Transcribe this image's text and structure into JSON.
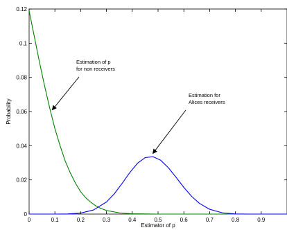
{
  "chart_data": {
    "type": "line",
    "xlabel": "Estimator of p",
    "ylabel": "Probability",
    "xlim": [
      0,
      1
    ],
    "ylim": [
      0,
      0.12
    ],
    "x_ticks": [
      "0",
      "0.1",
      "0.2",
      "0.3",
      "0.4",
      "0.5",
      "0.6",
      "0.7",
      "0.8",
      "0.9"
    ],
    "y_ticks": [
      "0",
      "0.02",
      "0.04",
      "0.06",
      "0.08",
      "0.1",
      "0.12"
    ],
    "grid": false,
    "series": [
      {
        "color": "#008000",
        "x": [
          0,
          0.02,
          0.04,
          0.06,
          0.08,
          0.1,
          0.12,
          0.14,
          0.16,
          0.18,
          0.2,
          0.22,
          0.24,
          0.26,
          0.28,
          0.3,
          0.35,
          0.4,
          0.45,
          0.5,
          0.6,
          0.7,
          0.8,
          0.9,
          1.0
        ],
        "y": [
          0.119,
          0.104,
          0.089,
          0.075,
          0.062,
          0.05,
          0.04,
          0.031,
          0.024,
          0.018,
          0.013,
          0.0095,
          0.0068,
          0.0047,
          0.0032,
          0.0021,
          0.0007,
          0.0002,
          0.0001,
          0,
          0,
          0,
          0,
          0,
          0
        ]
      },
      {
        "color": "#0000ff",
        "x": [
          0,
          0.05,
          0.1,
          0.15,
          0.2,
          0.25,
          0.3,
          0.33,
          0.36,
          0.39,
          0.42,
          0.45,
          0.48,
          0.51,
          0.54,
          0.57,
          0.6,
          0.63,
          0.66,
          0.7,
          0.75,
          0.8,
          0.85,
          0.9,
          0.95,
          1.0
        ],
        "y": [
          0,
          0,
          0,
          0.0001,
          0.0006,
          0.0024,
          0.0071,
          0.0118,
          0.0178,
          0.0242,
          0.0297,
          0.033,
          0.0336,
          0.0315,
          0.0271,
          0.0215,
          0.0156,
          0.0104,
          0.0063,
          0.0028,
          0.0007,
          0.0001,
          0,
          0,
          0,
          0
        ]
      }
    ],
    "annotations": [
      {
        "lines": [
          "Estimation of p",
          "for non receivers"
        ],
        "arrow_to": [
          0.09,
          0.061
        ]
      },
      {
        "lines": [
          "Estimation for",
          "Alices receivers"
        ],
        "arrow_to": [
          0.48,
          0.0355
        ]
      }
    ]
  }
}
